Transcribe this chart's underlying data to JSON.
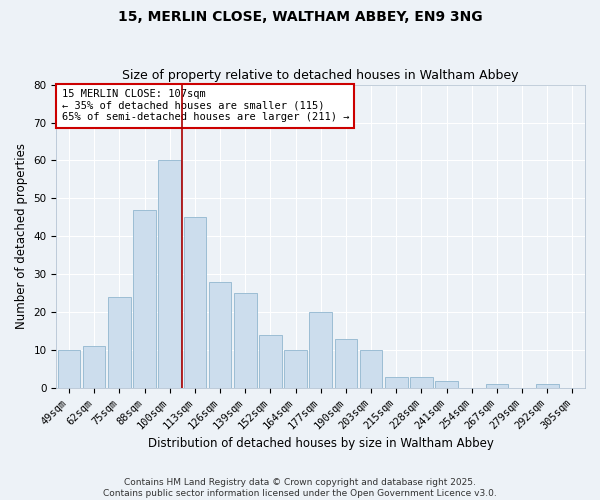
{
  "title1": "15, MERLIN CLOSE, WALTHAM ABBEY, EN9 3NG",
  "title2": "Size of property relative to detached houses in Waltham Abbey",
  "xlabel": "Distribution of detached houses by size in Waltham Abbey",
  "ylabel": "Number of detached properties",
  "categories": [
    "49sqm",
    "62sqm",
    "75sqm",
    "88sqm",
    "100sqm",
    "113sqm",
    "126sqm",
    "139sqm",
    "152sqm",
    "164sqm",
    "177sqm",
    "190sqm",
    "203sqm",
    "215sqm",
    "228sqm",
    "241sqm",
    "254sqm",
    "267sqm",
    "279sqm",
    "292sqm",
    "305sqm"
  ],
  "values": [
    10,
    11,
    24,
    47,
    60,
    45,
    28,
    25,
    14,
    10,
    20,
    13,
    10,
    3,
    3,
    2,
    0,
    1,
    0,
    1,
    0
  ],
  "bar_color": "#ccdded",
  "bar_edge_color": "#9bbdd4",
  "ylim": [
    0,
    80
  ],
  "yticks": [
    0,
    10,
    20,
    30,
    40,
    50,
    60,
    70,
    80
  ],
  "vline_x": 4.5,
  "vline_color": "#aa0000",
  "annotation_title": "15 MERLIN CLOSE: 107sqm",
  "annotation_line1": "← 35% of detached houses are smaller (115)",
  "annotation_line2": "65% of semi-detached houses are larger (211) →",
  "annotation_box_color": "#ffffff",
  "annotation_box_edge": "#cc0000",
  "footer1": "Contains HM Land Registry data © Crown copyright and database right 2025.",
  "footer2": "Contains public sector information licensed under the Open Government Licence v3.0.",
  "bg_color": "#edf2f7",
  "grid_color": "#ffffff",
  "title_fontsize": 10,
  "subtitle_fontsize": 9,
  "axis_label_fontsize": 8.5,
  "tick_fontsize": 7.5,
  "annotation_fontsize": 7.5,
  "footer_fontsize": 6.5
}
